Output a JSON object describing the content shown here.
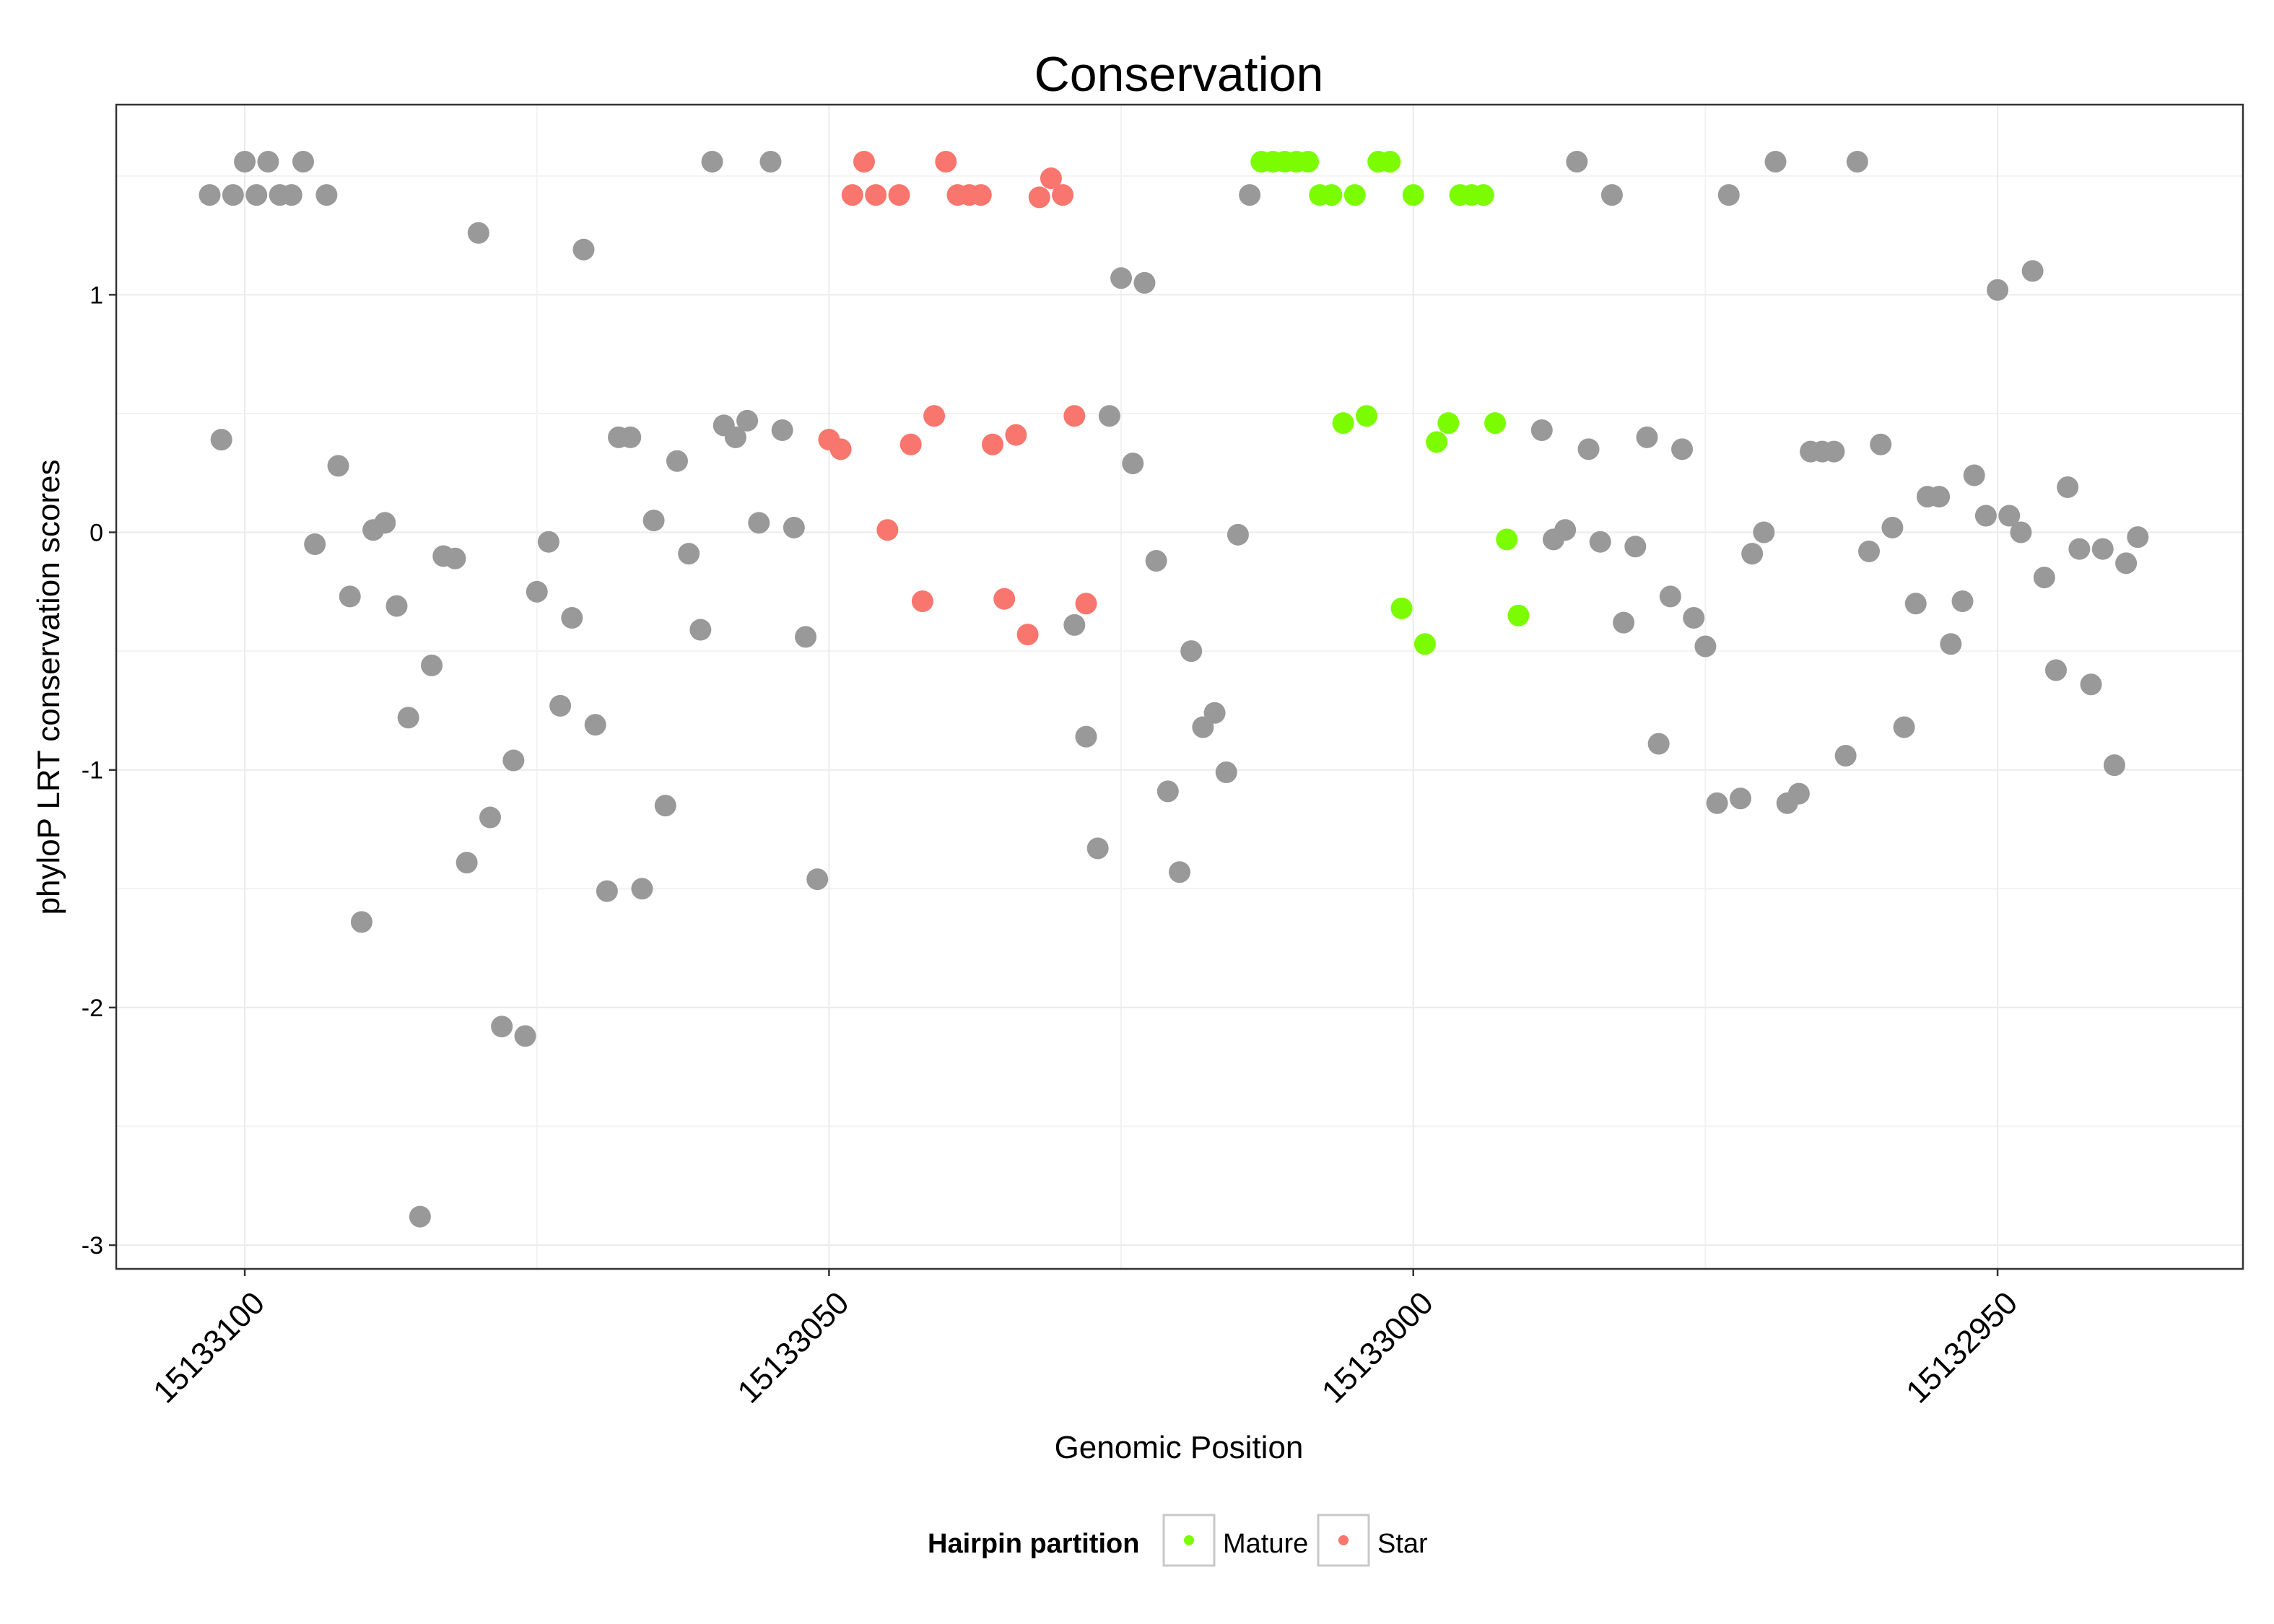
{
  "chart_data": {
    "type": "scatter",
    "title": "Conservation",
    "xlabel": "Genomic Position",
    "ylabel": "phyloP LRT conservation scores",
    "xlim": [
      15133111,
      15132929
    ],
    "x_reversed": true,
    "ylim": [
      -3.1,
      1.8
    ],
    "x_ticks": [
      15133100,
      15133050,
      15133000,
      15132950
    ],
    "x_tick_labels": [
      "15133100",
      "15133050",
      "15133000",
      "15132950"
    ],
    "y_ticks": [
      -3,
      -2,
      -1,
      0,
      1
    ],
    "y_tick_labels": [
      "-3",
      "-2",
      "-1",
      "0",
      "1"
    ],
    "grid": true,
    "legend": {
      "title": "Hairpin partition",
      "position": "bottom",
      "entries": [
        {
          "name": "Mature",
          "color": "#7CFC00"
        },
        {
          "name": "Star",
          "color": "#F8766D"
        }
      ]
    },
    "colors": {
      "other": "#999999",
      "Mature": "#7CFC00",
      "Star": "#F8766D"
    },
    "series": [
      {
        "name": "Other",
        "color": "#999999",
        "points": [
          [
            15133103,
            1.42
          ],
          [
            15133102,
            0.39
          ],
          [
            15133101,
            1.42
          ],
          [
            15133100,
            1.56
          ],
          [
            15133099,
            1.42
          ],
          [
            15133098,
            1.56
          ],
          [
            15133097,
            1.42
          ],
          [
            15133096,
            1.42
          ],
          [
            15133095,
            1.56
          ],
          [
            15133094,
            -0.05
          ],
          [
            15133093,
            1.42
          ],
          [
            15133092,
            0.28
          ],
          [
            15133091,
            -0.27
          ],
          [
            15133090,
            -1.64
          ],
          [
            15133089,
            0.01
          ],
          [
            15133088,
            0.04
          ],
          [
            15133087,
            -0.31
          ],
          [
            15133086,
            -0.78
          ],
          [
            15133085,
            -2.88
          ],
          [
            15133084,
            -0.56
          ],
          [
            15133083,
            -0.1
          ],
          [
            15133082,
            -0.11
          ],
          [
            15133081,
            -1.39
          ],
          [
            15133080,
            1.26
          ],
          [
            15133079,
            -1.2
          ],
          [
            15133078,
            -2.08
          ],
          [
            15133077,
            -0.96
          ],
          [
            15133076,
            -2.12
          ],
          [
            15133075,
            -0.25
          ],
          [
            15133074,
            -0.04
          ],
          [
            15133073,
            -0.73
          ],
          [
            15133072,
            -0.36
          ],
          [
            15133071,
            1.19
          ],
          [
            15133070,
            -0.81
          ],
          [
            15133069,
            -1.51
          ],
          [
            15133068,
            0.4
          ],
          [
            15133067,
            0.4
          ],
          [
            15133066,
            -1.5
          ],
          [
            15133065,
            0.05
          ],
          [
            15133064,
            -1.15
          ],
          [
            15133063,
            0.3
          ],
          [
            15133062,
            -0.09
          ],
          [
            15133061,
            -0.41
          ],
          [
            15133060,
            1.56
          ],
          [
            15133059,
            0.45
          ],
          [
            15133058,
            0.4
          ],
          [
            15133057,
            0.47
          ],
          [
            15133056,
            0.04
          ],
          [
            15133055,
            1.56
          ],
          [
            15133054,
            0.43
          ],
          [
            15133053,
            0.02
          ],
          [
            15133052,
            -0.44
          ],
          [
            15133051,
            -1.46
          ],
          [
            15133029,
            -0.39
          ],
          [
            15133028,
            -0.86
          ],
          [
            15133027,
            -1.33
          ],
          [
            15133026,
            0.49
          ],
          [
            15133025,
            1.07
          ],
          [
            15133024,
            0.29
          ],
          [
            15133023,
            1.05
          ],
          [
            15133022,
            -0.12
          ],
          [
            15133021,
            -1.09
          ],
          [
            15133020,
            -1.43
          ],
          [
            15133019,
            -0.5
          ],
          [
            15133018,
            -0.82
          ],
          [
            15133017,
            -0.76
          ],
          [
            15133016,
            -1.01
          ],
          [
            15133015,
            -0.01
          ],
          [
            15133014,
            1.42
          ],
          [
            15132989,
            0.43
          ],
          [
            15132988,
            -0.03
          ],
          [
            15132987,
            0.01
          ],
          [
            15132986,
            1.56
          ],
          [
            15132985,
            0.35
          ],
          [
            15132984,
            -0.04
          ],
          [
            15132983,
            1.42
          ],
          [
            15132982,
            -0.38
          ],
          [
            15132981,
            -0.06
          ],
          [
            15132980,
            0.4
          ],
          [
            15132979,
            -0.89
          ],
          [
            15132978,
            -0.27
          ],
          [
            15132977,
            0.35
          ],
          [
            15132976,
            -0.36
          ],
          [
            15132975,
            -0.48
          ],
          [
            15132974,
            -1.14
          ],
          [
            15132973,
            1.42
          ],
          [
            15132972,
            -1.12
          ],
          [
            15132971,
            -0.09
          ],
          [
            15132970,
            0.0
          ],
          [
            15132969,
            1.56
          ],
          [
            15132968,
            -1.14
          ],
          [
            15132967,
            -1.1
          ],
          [
            15132966,
            0.34
          ],
          [
            15132965,
            0.34
          ],
          [
            15132964,
            0.34
          ],
          [
            15132963,
            -0.94
          ],
          [
            15132962,
            1.56
          ],
          [
            15132961,
            -0.08
          ],
          [
            15132960,
            0.37
          ],
          [
            15132959,
            0.02
          ],
          [
            15132958,
            -0.82
          ],
          [
            15132957,
            -0.3
          ],
          [
            15132956,
            0.15
          ],
          [
            15132955,
            0.15
          ],
          [
            15132954,
            -0.47
          ],
          [
            15132953,
            -0.29
          ],
          [
            15132952,
            0.24
          ],
          [
            15132951,
            0.07
          ],
          [
            15132950,
            1.02
          ],
          [
            15132949,
            0.07
          ],
          [
            15132948,
            0.0
          ],
          [
            15132947,
            1.1
          ],
          [
            15132946,
            -0.19
          ],
          [
            15132945,
            -0.58
          ],
          [
            15132944,
            0.19
          ],
          [
            15132943,
            -0.07
          ],
          [
            15132942,
            -0.64
          ],
          [
            15132941,
            -0.07
          ],
          [
            15132940,
            -0.98
          ],
          [
            15132939,
            -0.13
          ],
          [
            15132938,
            -0.02
          ]
        ]
      },
      {
        "name": "Star",
        "color": "#F8766D",
        "points": [
          [
            15133050,
            0.39
          ],
          [
            15133049,
            0.35
          ],
          [
            15133048,
            1.42
          ],
          [
            15133047,
            1.56
          ],
          [
            15133046,
            1.42
          ],
          [
            15133045,
            0.01
          ],
          [
            15133044,
            1.42
          ],
          [
            15133043,
            0.37
          ],
          [
            15133042,
            -0.29
          ],
          [
            15133041,
            0.49
          ],
          [
            15133040,
            1.56
          ],
          [
            15133039,
            1.42
          ],
          [
            15133038,
            1.42
          ],
          [
            15133037,
            1.42
          ],
          [
            15133036,
            0.37
          ],
          [
            15133035,
            -0.28
          ],
          [
            15133034,
            0.41
          ],
          [
            15133033,
            -0.43
          ],
          [
            15133032,
            1.41
          ],
          [
            15133031,
            1.49
          ],
          [
            15133030,
            1.42
          ],
          [
            15133029,
            0.49
          ],
          [
            15133028,
            -0.3
          ]
        ]
      },
      {
        "name": "Mature",
        "color": "#7CFC00",
        "points": [
          [
            15133013,
            1.56
          ],
          [
            15133012,
            1.56
          ],
          [
            15133011,
            1.56
          ],
          [
            15133010,
            1.56
          ],
          [
            15133009,
            1.56
          ],
          [
            15133008,
            1.42
          ],
          [
            15133007,
            1.42
          ],
          [
            15133006,
            0.46
          ],
          [
            15133005,
            1.42
          ],
          [
            15133004,
            0.49
          ],
          [
            15133003,
            1.56
          ],
          [
            15133002,
            1.56
          ],
          [
            15133001,
            -0.32
          ],
          [
            15133000,
            1.42
          ],
          [
            15132999,
            -0.47
          ],
          [
            15132998,
            0.38
          ],
          [
            15132997,
            0.46
          ],
          [
            15132996,
            1.42
          ],
          [
            15132995,
            1.42
          ],
          [
            15132994,
            1.42
          ],
          [
            15132993,
            0.46
          ],
          [
            15132992,
            -0.03
          ],
          [
            15132991,
            -0.35
          ]
        ]
      }
    ]
  }
}
